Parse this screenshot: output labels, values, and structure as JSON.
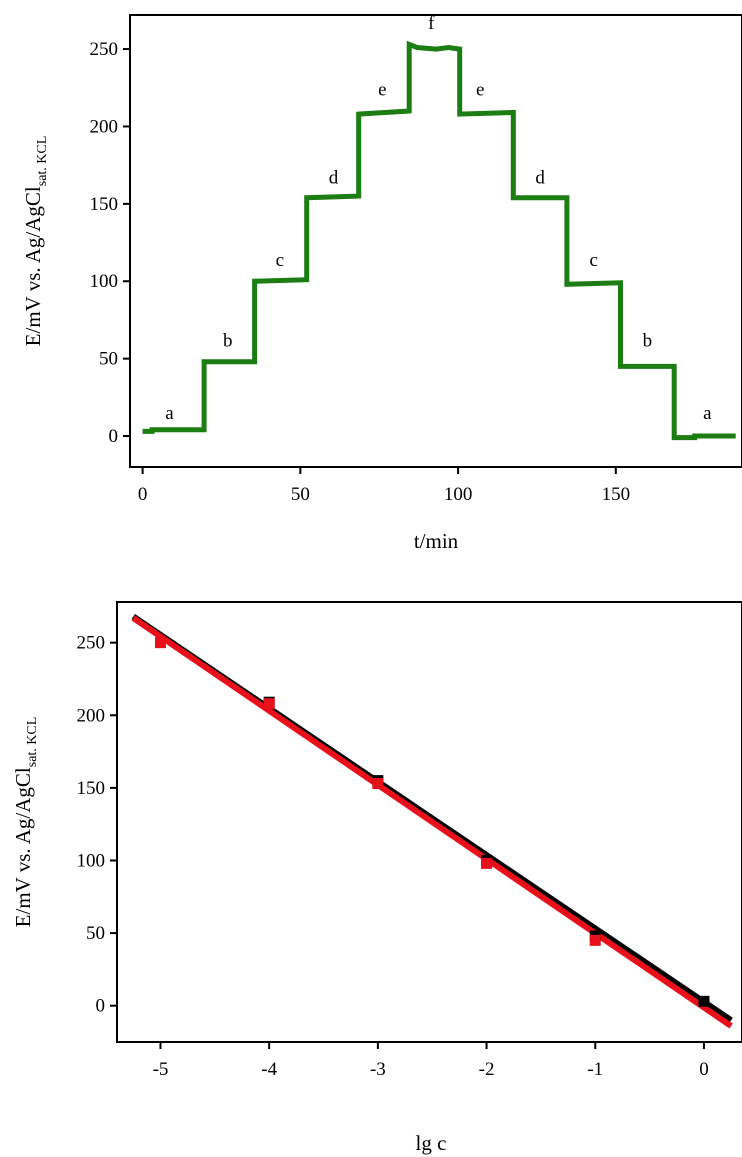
{
  "chart_data": [
    {
      "type": "line",
      "xlabel": "t/min",
      "ylabel_main": "E/mV vs. Ag/AgCl",
      "ylabel_sub": "sat. KCL",
      "xlim": [
        -4,
        190
      ],
      "ylim": [
        -20,
        272
      ],
      "xticks": [
        0,
        50,
        100,
        150
      ],
      "yticks": [
        0,
        50,
        100,
        150,
        200,
        250
      ],
      "grid": false,
      "color": "#1b7d12",
      "series": [
        {
          "points": [
            [
              0,
              3
            ],
            [
              3,
              3
            ],
            [
              3,
              4
            ],
            [
              19.5,
              4
            ],
            [
              19.5,
              48
            ],
            [
              35.5,
              48
            ],
            [
              35.5,
              100
            ],
            [
              52,
              101
            ],
            [
              52,
              154
            ],
            [
              68.5,
              155
            ],
            [
              68.5,
              208
            ],
            [
              84.5,
              210
            ],
            [
              84.5,
              253
            ],
            [
              87,
              251
            ],
            [
              93,
              250
            ],
            [
              97,
              251
            ],
            [
              100.5,
              250
            ],
            [
              100.5,
              208
            ],
            [
              117.5,
              209
            ],
            [
              117.5,
              154
            ],
            [
              134.5,
              154
            ],
            [
              134.5,
              98
            ],
            [
              151.5,
              99
            ],
            [
              151.5,
              45
            ],
            [
              168.5,
              45
            ],
            [
              168.5,
              -1
            ],
            [
              175,
              -1
            ],
            [
              175,
              0
            ],
            [
              188,
              0
            ]
          ]
        }
      ],
      "annotations": [
        {
          "text": "a",
          "x": 8.5,
          "y": 11
        },
        {
          "text": "b",
          "x": 27,
          "y": 58
        },
        {
          "text": "c",
          "x": 43.5,
          "y": 110
        },
        {
          "text": "d",
          "x": 60.5,
          "y": 163
        },
        {
          "text": "e",
          "x": 76,
          "y": 220
        },
        {
          "text": "f",
          "x": 91.5,
          "y": 263
        },
        {
          "text": "e",
          "x": 107,
          "y": 220
        },
        {
          "text": "d",
          "x": 126,
          "y": 163
        },
        {
          "text": "c",
          "x": 143,
          "y": 110
        },
        {
          "text": "b",
          "x": 160,
          "y": 58
        },
        {
          "text": "a",
          "x": 179,
          "y": 11
        }
      ]
    },
    {
      "type": "scatter",
      "xlabel": "lg c",
      "ylabel_main": "E/mV vs. Ag/AgCl",
      "ylabel_sub": "sat. KCL",
      "xlim": [
        -5.4,
        0.35
      ],
      "ylim": [
        -25,
        278
      ],
      "xticks": [
        -5,
        -4,
        -3,
        -2,
        -1,
        0
      ],
      "yticks": [
        0,
        50,
        100,
        150,
        200,
        250
      ],
      "grid": false,
      "black_points": [
        [
          -4,
          209
        ],
        [
          -3,
          155
        ],
        [
          -2,
          100
        ],
        [
          -1,
          48
        ],
        [
          0,
          3
        ]
      ],
      "red_points": [
        [
          -5,
          250
        ],
        [
          -4,
          208
        ],
        [
          -3,
          153
        ],
        [
          -2,
          98
        ],
        [
          -1,
          45
        ]
      ],
      "fit_black": [
        [
          -5.25,
          268
        ],
        [
          0.25,
          -10
        ]
      ],
      "fit_red": [
        [
          -5.25,
          267
        ],
        [
          0.25,
          -14
        ]
      ],
      "colors": {
        "black": "#000000",
        "red": "#e8101b"
      }
    }
  ]
}
